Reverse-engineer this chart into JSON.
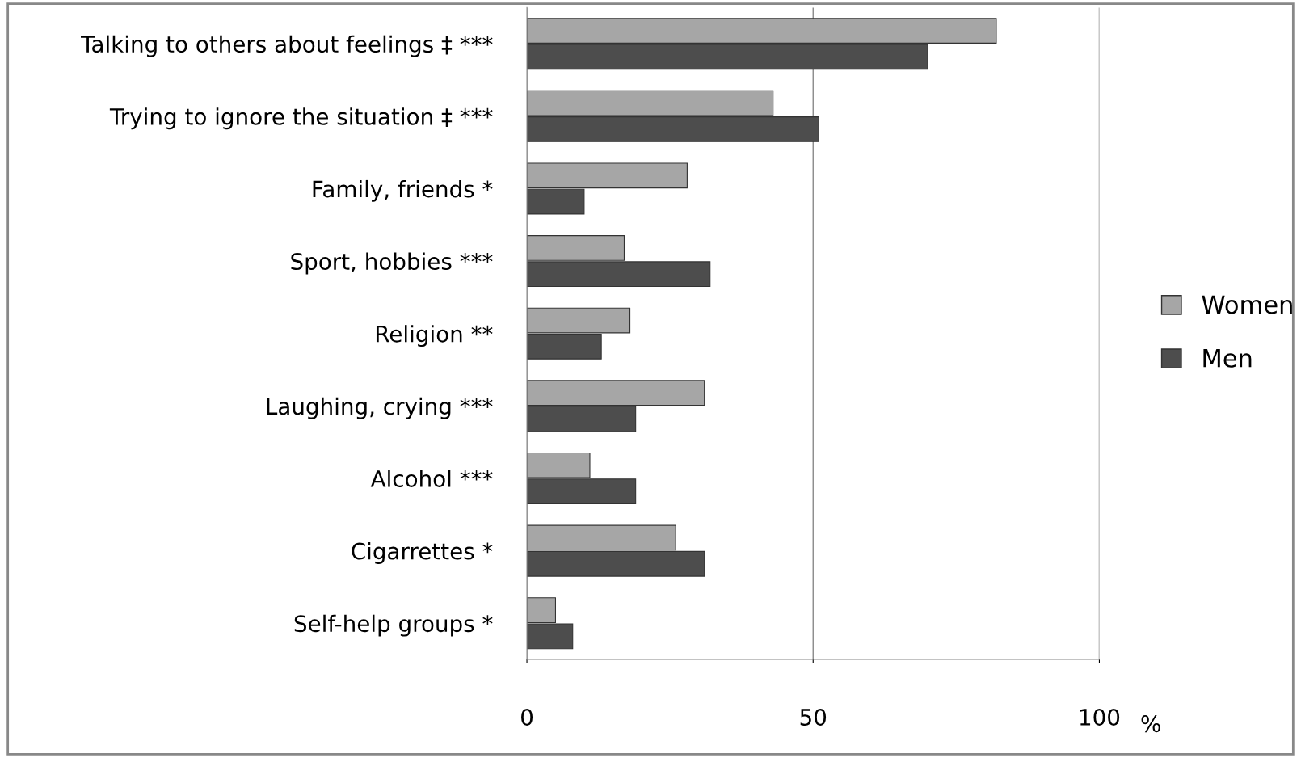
{
  "chart_data": {
    "type": "bar",
    "orientation": "horizontal",
    "xlabel": "%",
    "categories": [
      "Talking to others about feelings ‡ ***",
      "Trying to ignore the situation ‡ ***",
      "Family, friends *",
      "Sport, hobbies ***",
      "Religion **",
      "Laughing, crying ***",
      "Alcohol ***",
      "Cigarrettes *",
      "Self-help groups *"
    ],
    "series": [
      {
        "name": "Women",
        "color": "#a6a6a6",
        "values": [
          82,
          43,
          28,
          17,
          18,
          31,
          11,
          26,
          5
        ]
      },
      {
        "name": "Men",
        "color": "#4d4d4d",
        "values": [
          70,
          51,
          10,
          32,
          13,
          19,
          19,
          31,
          8
        ]
      }
    ],
    "xlim": [
      0,
      100
    ],
    "xticks": [
      0,
      50,
      100
    ],
    "grid": "x",
    "legend": "right"
  }
}
